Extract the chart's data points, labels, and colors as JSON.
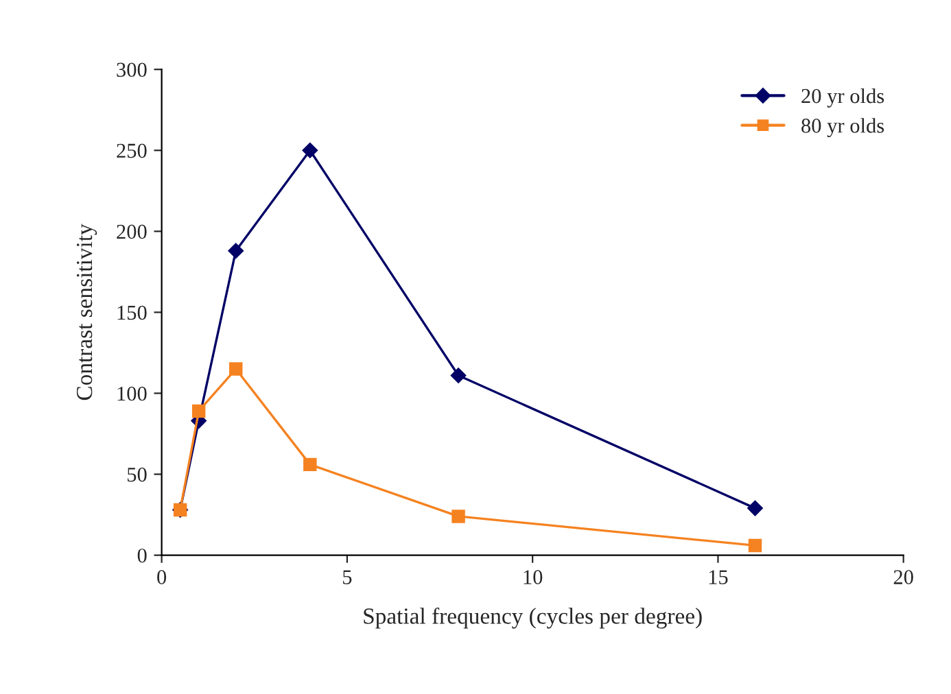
{
  "chart_data": {
    "type": "line",
    "xlabel": "Spatial frequency (cycles per degree)",
    "ylabel": "Contrast sensitivity",
    "series": [
      {
        "name": "20 yr olds",
        "color": "#000066",
        "marker": "diamond",
        "x": [
          0.5,
          1,
          2,
          4,
          8,
          16
        ],
        "values": [
          28,
          83,
          188,
          250,
          111,
          29
        ]
      },
      {
        "name": "80 yr olds",
        "color": "#f58220",
        "marker": "square",
        "x": [
          0.5,
          1,
          2,
          4,
          8,
          16
        ],
        "values": [
          28,
          89,
          115,
          56,
          24,
          6
        ]
      }
    ],
    "xlim": [
      0,
      20
    ],
    "xticks": [
      0,
      5,
      10,
      15,
      20
    ],
    "ylim": [
      0,
      300
    ],
    "yticks": [
      0,
      50,
      100,
      150,
      200,
      250,
      300
    ],
    "grid": false,
    "legend": "top right",
    "line_style": "solid"
  }
}
